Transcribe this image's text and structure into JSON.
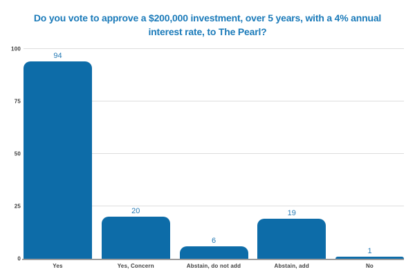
{
  "colors": {
    "bar": "#0d6ca8",
    "title_text": "#1a7ab9",
    "value_label": "#2479b4",
    "axis_label": "#3d3d3d",
    "gridline": "#dddddd",
    "baseline": "#9b9b9b",
    "background": "#ffffff"
  },
  "chart_data": {
    "type": "bar",
    "title": "Do you vote to approve a $200,000 investment, over 5 years, with a 4% annual interest rate, to The Pearl?",
    "title_lines": [
      "Do you vote to approve a $200,000 investment, over 5 years, with a 4% annual",
      "interest rate, to The Pearl?"
    ],
    "categories": [
      "Yes",
      "Yes, Concern",
      "Abstain, do not add",
      "Abstain, add",
      "No"
    ],
    "values": [
      94,
      20,
      6,
      19,
      1
    ],
    "xlabel": "",
    "ylabel": "",
    "yticks": [
      0,
      25,
      50,
      75,
      100
    ],
    "ylim": [
      0,
      100
    ],
    "grid": true,
    "legend_position": "none"
  }
}
